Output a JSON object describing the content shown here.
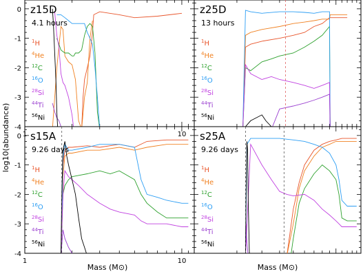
{
  "figure": {
    "ylabel": "log10(abundance)",
    "xlabel": "Mass (M⊙)"
  },
  "colors": {
    "1H": "#e8542a",
    "4He": "#f08020",
    "12C": "#2ca02c",
    "16O": "#2a9df4",
    "28Si": "#c040e0",
    "44Ti": "#9a3fd0",
    "56Ni": "#000000",
    "frame": "#000000",
    "marker": "#e06060"
  },
  "chart_data": [
    {
      "type": "line",
      "panel": "z15D",
      "title": "z15D",
      "subtitle": "4.1 hours",
      "xscale": "log",
      "xlim": [
        1,
        12
      ],
      "ylim": [
        -4,
        0.3
      ],
      "xticks": [
        "1",
        "10"
      ],
      "yticks": [
        "0",
        "-1",
        "-2",
        "-3",
        "-4"
      ],
      "series": [
        {
          "name": "1H",
          "x": [
            1.5,
            1.6,
            1.7,
            1.8,
            1.85,
            1.9,
            2.0,
            2.1,
            2.2,
            2.3,
            2.35,
            2.4,
            2.45,
            2.5,
            2.55,
            2.6,
            2.7,
            2.75,
            3.0,
            4.0,
            5.0,
            7.0,
            10.0
          ],
          "y": [
            -4.2,
            -4.2,
            -4.2,
            -4.2,
            -4.2,
            -4.2,
            -4.2,
            -4.2,
            -4.2,
            -4.2,
            -3.0,
            -2.4,
            -2.2,
            -2.0,
            -1.8,
            -1.6,
            -0.8,
            -0.2,
            -0.1,
            -0.2,
            -0.3,
            -0.25,
            -0.15
          ]
        },
        {
          "name": "4He",
          "x": [
            1.5,
            1.6,
            1.7,
            1.75,
            1.8,
            1.9,
            2.0,
            2.1,
            2.2,
            2.3,
            2.4,
            2.5,
            2.6,
            2.7
          ],
          "y": [
            -4.2,
            -2.0,
            -0.6,
            -0.7,
            -1.6,
            -1.8,
            -1.9,
            -2.4,
            -3.8,
            -4.2,
            -3.0,
            -2.5,
            -1.0,
            -0.4
          ]
        },
        {
          "name": "12C",
          "x": [
            1.6,
            1.7,
            1.8,
            1.9,
            2.0,
            2.05,
            2.1,
            2.2,
            2.3,
            2.4,
            2.5,
            2.6,
            2.7,
            2.8,
            2.9,
            3.0
          ],
          "y": [
            -1.0,
            -1.4,
            -1.5,
            -1.5,
            -1.6,
            -1.6,
            -1.5,
            -1.5,
            -1.4,
            -0.9,
            -0.6,
            -0.5,
            -0.6,
            -1.5,
            -3.5,
            -4.2
          ]
        },
        {
          "name": "16O",
          "x": [
            1.6,
            1.7,
            1.8,
            1.9,
            2.0,
            2.1,
            2.2,
            2.3,
            2.4,
            2.5,
            2.6,
            2.7,
            2.8,
            2.9,
            3.0
          ],
          "y": [
            -0.2,
            -0.2,
            -0.3,
            -0.4,
            -0.5,
            -0.5,
            -0.5,
            -0.5,
            -0.5,
            -0.8,
            -1.0,
            -1.2,
            -2.0,
            -3.0,
            -4.2
          ]
        },
        {
          "name": "28Si",
          "x": [
            1.55,
            1.6,
            1.65,
            1.7,
            1.75,
            1.8,
            1.9,
            2.0,
            2.05
          ],
          "y": [
            -0.1,
            -0.9,
            -1.3,
            -2.2,
            -2.5,
            -2.6,
            -3.0,
            -3.6,
            -4.2
          ]
        },
        {
          "name": "44Ti",
          "x": [
            1.5,
            1.55,
            1.6,
            1.65,
            1.7,
            1.75
          ],
          "y": [
            -3.2,
            -3.5,
            -3.7,
            -3.8,
            -4.0,
            -4.2
          ]
        },
        {
          "name": "56Ni",
          "x": [
            1.5,
            1.52,
            1.55,
            1.58,
            1.6,
            1.62
          ],
          "y": [
            0.0,
            -0.5,
            -1.5,
            -2.5,
            -3.5,
            -4.2
          ]
        }
      ]
    },
    {
      "type": "line",
      "panel": "z25D",
      "title": "z25D",
      "subtitle": "13 hours",
      "xscale": "log",
      "xlim": [
        1,
        15
      ],
      "ylim": [
        -4,
        0.3
      ],
      "xticks": [],
      "yticks": [],
      "series": [
        {
          "name": "1H",
          "x": [
            2.2,
            2.3,
            2.5,
            3.0,
            4.0,
            5.0,
            6.0,
            7.0,
            8.0,
            9.0,
            9.1,
            10.0,
            12.0
          ],
          "y": [
            -4.2,
            -1.3,
            -1.2,
            -1.1,
            -1.0,
            -0.9,
            -0.8,
            -0.6,
            -0.5,
            -0.3,
            -0.3,
            -0.3,
            -0.3
          ]
        },
        {
          "name": "4He",
          "x": [
            2.2,
            2.3,
            2.5,
            3.0,
            4.0,
            5.0,
            6.0,
            7.0,
            8.0,
            9.0,
            9.1,
            10.0,
            12.0
          ],
          "y": [
            -4.2,
            -0.9,
            -0.8,
            -0.7,
            -0.6,
            -0.5,
            -0.45,
            -0.4,
            -0.35,
            -0.35,
            -0.2,
            -0.2,
            -0.2
          ]
        },
        {
          "name": "12C",
          "x": [
            2.2,
            2.3,
            2.5,
            3.0,
            3.5,
            4.0,
            5.0,
            6.0,
            7.0,
            8.0,
            9.0,
            9.1
          ],
          "y": [
            -4.2,
            -2.0,
            -2.1,
            -1.8,
            -1.7,
            -1.6,
            -1.5,
            -1.3,
            -1.1,
            -0.9,
            -0.6,
            -4.2
          ]
        },
        {
          "name": "16O",
          "x": [
            2.2,
            2.3,
            2.5,
            3.0,
            4.0,
            5.0,
            6.0,
            7.0,
            8.0,
            9.0,
            9.1
          ],
          "y": [
            -4.2,
            -0.05,
            -0.1,
            -0.15,
            -0.1,
            -0.1,
            -0.12,
            -0.15,
            -0.1,
            -0.1,
            -4.2
          ]
        },
        {
          "name": "28Si",
          "x": [
            2.2,
            2.3,
            2.5,
            3.0,
            3.5,
            4.0,
            5.0,
            6.0,
            7.0,
            8.0,
            9.0,
            9.1
          ],
          "y": [
            -4.2,
            -1.9,
            -2.2,
            -2.4,
            -2.3,
            -2.4,
            -2.5,
            -2.6,
            -2.7,
            -2.6,
            -2.5,
            -4.2
          ]
        },
        {
          "name": "44Ti",
          "x": [
            3.5,
            4.0,
            5.0,
            6.0,
            7.0,
            8.0,
            9.0,
            9.1
          ],
          "y": [
            -4.2,
            -3.4,
            -3.3,
            -3.2,
            -3.1,
            -3.0,
            -2.9,
            -4.2
          ]
        },
        {
          "name": "56Ni",
          "x": [
            2.2,
            2.3,
            2.5,
            3.0,
            3.2,
            3.5,
            3.8
          ],
          "y": [
            -4.2,
            -4.0,
            -3.8,
            -3.6,
            -3.8,
            -4.0,
            -4.2
          ]
        }
      ]
    },
    {
      "type": "line",
      "panel": "s15A",
      "title": "s15A",
      "subtitle": "9.26 days",
      "xscale": "log",
      "xlim": [
        1,
        12
      ],
      "ylim": [
        -4,
        0.3
      ],
      "xticks": [
        "1",
        "10"
      ],
      "yticks": [
        "0",
        "-1",
        "-2",
        "-3",
        "-4"
      ],
      "series": [
        {
          "name": "1H",
          "x": [
            1.7,
            1.75,
            1.8,
            1.9,
            2.0,
            2.5,
            3.0,
            4.0,
            5.0,
            6.0,
            8.0,
            10.0,
            11.0
          ],
          "y": [
            -4.2,
            -1.0,
            -0.5,
            -0.4,
            -0.4,
            -0.35,
            -0.4,
            -0.3,
            -0.4,
            -0.2,
            -0.15,
            -0.15,
            -0.15
          ]
        },
        {
          "name": "4He",
          "x": [
            1.7,
            1.75,
            1.8,
            1.9,
            2.0,
            2.5,
            3.0,
            4.0,
            5.0,
            6.0,
            8.0,
            10.0,
            11.0
          ],
          "y": [
            -4.2,
            -1.4,
            -0.7,
            -0.6,
            -0.6,
            -0.5,
            -0.5,
            -0.4,
            -0.5,
            -0.4,
            -0.3,
            -0.3,
            -0.3
          ]
        },
        {
          "name": "12C",
          "x": [
            1.7,
            1.75,
            1.8,
            1.9,
            2.0,
            2.5,
            3.0,
            3.5,
            4.0,
            5.0,
            5.5,
            6.0,
            7.0,
            8.0,
            10.0,
            11.0
          ],
          "y": [
            -4.2,
            -2.0,
            -1.7,
            -1.5,
            -1.4,
            -1.3,
            -1.2,
            -1.3,
            -1.2,
            -1.5,
            -2.0,
            -2.3,
            -2.6,
            -2.8,
            -2.8,
            -2.8
          ]
        },
        {
          "name": "16O",
          "x": [
            1.7,
            1.75,
            1.8,
            1.9,
            2.0,
            2.5,
            3.0,
            4.0,
            5.0,
            5.5,
            6.0,
            7.0,
            8.0,
            10.0,
            11.0
          ],
          "y": [
            -4.2,
            -0.8,
            -0.3,
            -0.5,
            -0.5,
            -0.4,
            -0.3,
            -0.3,
            -0.4,
            -1.5,
            -2.0,
            -2.1,
            -2.2,
            -2.3,
            -2.3
          ]
        },
        {
          "name": "28Si",
          "x": [
            1.7,
            1.75,
            1.8,
            1.9,
            2.0,
            2.2,
            2.5,
            3.0,
            3.5,
            4.0,
            5.0,
            5.5,
            6.0,
            8.0,
            10.0,
            11.0
          ],
          "y": [
            -4.2,
            -2.0,
            -1.2,
            -1.4,
            -1.5,
            -1.7,
            -2.0,
            -2.3,
            -2.5,
            -2.6,
            -2.7,
            -2.9,
            -3.0,
            -3.0,
            -3.1,
            -3.1
          ]
        },
        {
          "name": "44Ti",
          "x": [
            1.7,
            1.75,
            1.8,
            1.9,
            2.0,
            2.1
          ],
          "y": [
            -4.2,
            -3.2,
            -3.5,
            -3.8,
            -4.0,
            -4.2
          ]
        },
        {
          "name": "56Ni",
          "x": [
            1.7,
            1.72,
            1.75,
            1.8,
            1.85,
            1.9,
            2.0,
            2.1,
            2.2,
            2.3,
            2.4,
            2.5
          ],
          "y": [
            -4.2,
            -2.0,
            -0.5,
            -0.2,
            -0.7,
            -1.0,
            -1.5,
            -2.0,
            -2.8,
            -3.5,
            -3.8,
            -4.2
          ]
        }
      ]
    },
    {
      "type": "line",
      "panel": "s25A",
      "title": "s25A",
      "subtitle": "9.26 days",
      "xscale": "log",
      "xlim": [
        1,
        15
      ],
      "ylim": [
        -4,
        0.3
      ],
      "xticks": [],
      "yticks": [],
      "series": [
        {
          "name": "1H",
          "x": [
            4.5,
            5.0,
            5.5,
            6.0,
            7.0,
            8.0,
            9.0,
            10.0,
            11.0,
            12.0,
            14.0
          ],
          "y": [
            -4.2,
            -2.5,
            -1.6,
            -1.0,
            -0.5,
            -0.3,
            -0.2,
            -0.15,
            -0.1,
            -0.1,
            -0.1
          ]
        },
        {
          "name": "4He",
          "x": [
            4.5,
            5.0,
            5.5,
            6.0,
            7.0,
            8.0,
            9.0,
            10.0,
            11.0,
            12.0,
            14.0
          ],
          "y": [
            -4.2,
            -3.0,
            -1.8,
            -1.2,
            -0.7,
            -0.4,
            -0.3,
            -0.2,
            -0.2,
            -0.2,
            -0.2
          ]
        },
        {
          "name": "12C",
          "x": [
            4.8,
            5.0,
            5.5,
            6.0,
            7.0,
            8.0,
            9.0,
            10.0,
            10.5,
            11.0,
            12.0,
            14.0
          ],
          "y": [
            -4.2,
            -3.5,
            -2.3,
            -1.8,
            -1.3,
            -1.0,
            -1.2,
            -1.5,
            -2.0,
            -2.8,
            -2.9,
            -2.9
          ]
        },
        {
          "name": "16O",
          "x": [
            2.3,
            2.35,
            2.5,
            3.0,
            4.0,
            5.0,
            6.0,
            7.0,
            8.0,
            9.0,
            10.0,
            10.5,
            11.0,
            12.0,
            14.0
          ],
          "y": [
            -4.2,
            -0.3,
            -0.1,
            -0.1,
            -0.1,
            -0.15,
            -0.2,
            -0.3,
            -0.4,
            -0.6,
            -1.0,
            -1.5,
            -2.2,
            -2.4,
            -2.4
          ]
        },
        {
          "name": "28Si",
          "x": [
            2.3,
            2.5,
            3.0,
            3.5,
            4.0,
            4.5,
            5.0,
            6.0,
            7.0,
            8.0,
            9.0,
            10.0,
            10.5,
            11.0,
            12.0,
            14.0
          ],
          "y": [
            -4.2,
            -0.3,
            -1.0,
            -1.5,
            -1.9,
            -2.0,
            -2.05,
            -2.0,
            -2.2,
            -2.5,
            -2.7,
            -2.9,
            -3.0,
            -3.1,
            -3.1,
            -3.1
          ]
        },
        {
          "name": "44Ti",
          "x": [
            2.3,
            2.32,
            2.35,
            2.4
          ],
          "y": [
            -4.2,
            -3.0,
            -3.6,
            -4.2
          ]
        },
        {
          "name": "56Ni",
          "x": [
            2.3,
            2.32,
            2.35,
            2.38,
            2.4,
            2.45
          ],
          "y": [
            -4.2,
            -2.0,
            -0.2,
            -0.5,
            -2.0,
            -4.2
          ]
        }
      ]
    }
  ]
}
